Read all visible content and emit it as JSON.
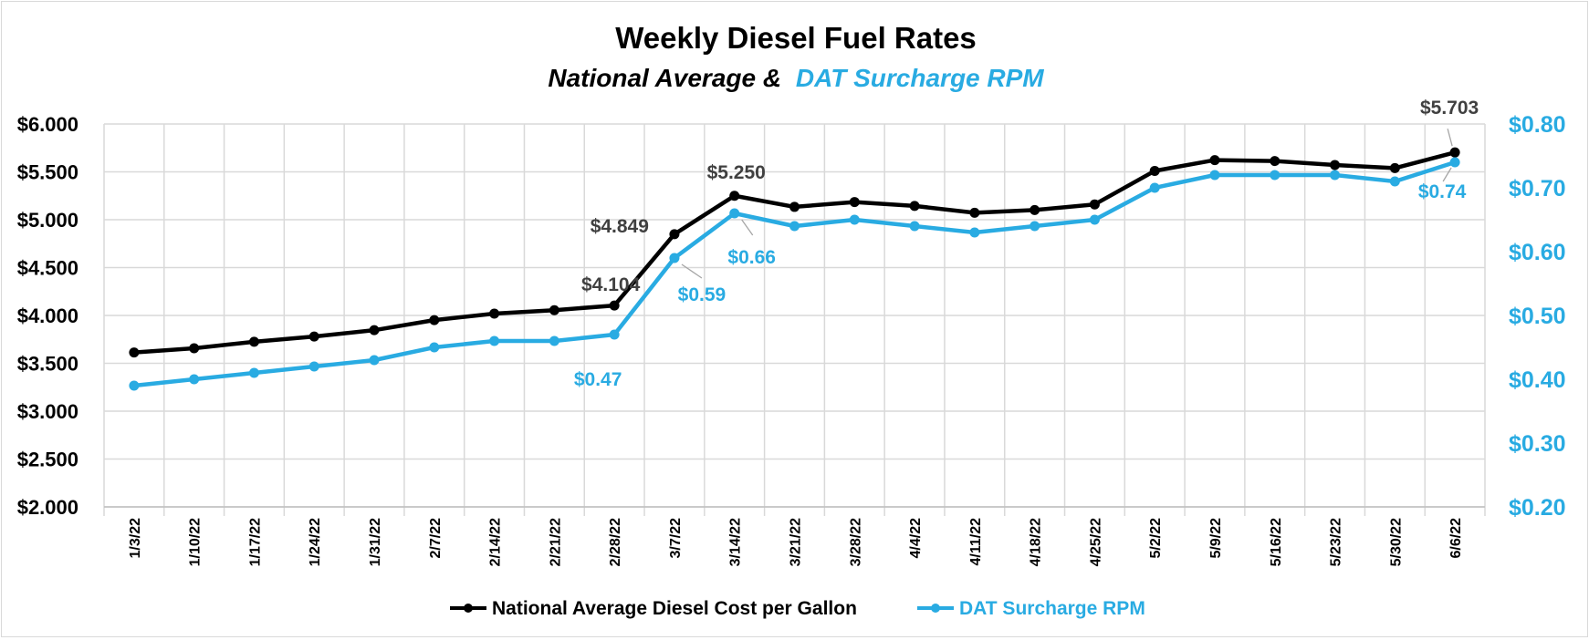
{
  "chart_data": {
    "type": "line",
    "title": "Weekly Diesel Fuel Rates",
    "subtitle_part1": "National Average &",
    "subtitle_part2": "DAT Surcharge RPM",
    "categories": [
      "1/3/22",
      "1/10/22",
      "1/17/22",
      "1/24/22",
      "1/31/22",
      "2/7/22",
      "2/14/22",
      "2/21/22",
      "2/28/22",
      "3/7/22",
      "3/14/22",
      "3/21/22",
      "3/28/22",
      "4/4/22",
      "4/11/22",
      "4/18/22",
      "4/25/22",
      "5/2/22",
      "5/9/22",
      "5/16/22",
      "5/23/22",
      "5/30/22",
      "6/6/22"
    ],
    "series": [
      {
        "name": "National Average Diesel Cost per Gallon",
        "axis": "left",
        "color": "#000000",
        "values": [
          3.613,
          3.657,
          3.725,
          3.78,
          3.846,
          3.951,
          4.019,
          4.055,
          4.104,
          4.849,
          5.25,
          5.134,
          5.185,
          5.144,
          5.073,
          5.101,
          5.16,
          5.51,
          5.623,
          5.613,
          5.571,
          5.539,
          5.703
        ],
        "data_labels": [
          {
            "index": 8,
            "text": "$4.104"
          },
          {
            "index": 9,
            "text": "$4.849"
          },
          {
            "index": 10,
            "text": "$5.250"
          },
          {
            "index": 22,
            "text": "$5.703"
          }
        ]
      },
      {
        "name": "DAT Surcharge RPM",
        "axis": "right",
        "color": "#29abe2",
        "values": [
          0.39,
          0.4,
          0.41,
          0.42,
          0.43,
          0.45,
          0.46,
          0.46,
          0.47,
          0.59,
          0.66,
          0.64,
          0.65,
          0.64,
          0.63,
          0.64,
          0.65,
          0.7,
          0.72,
          0.72,
          0.72,
          0.71,
          0.74
        ],
        "data_labels": [
          {
            "index": 8,
            "text": "$0.47"
          },
          {
            "index": 9,
            "text": "$0.59"
          },
          {
            "index": 10,
            "text": "$0.66"
          },
          {
            "index": 22,
            "text": "$0.74"
          }
        ]
      }
    ],
    "y_left": {
      "ylim": [
        2.0,
        6.0
      ],
      "ticks": [
        2.0,
        2.5,
        3.0,
        3.5,
        4.0,
        4.5,
        5.0,
        5.5,
        6.0
      ],
      "tick_labels": [
        "$2.000",
        "$2.500",
        "$3.000",
        "$3.500",
        "$4.000",
        "$4.500",
        "$5.000",
        "$5.500",
        "$6.000"
      ]
    },
    "y_right": {
      "ylim": [
        0.2,
        0.8
      ],
      "ticks": [
        0.2,
        0.3,
        0.4,
        0.5,
        0.6,
        0.7,
        0.8
      ],
      "tick_labels": [
        "$0.20",
        "$0.30",
        "$0.40",
        "$0.50",
        "$0.60",
        "$0.70",
        "$0.80"
      ]
    },
    "grid": true,
    "legend_position": "bottom"
  }
}
